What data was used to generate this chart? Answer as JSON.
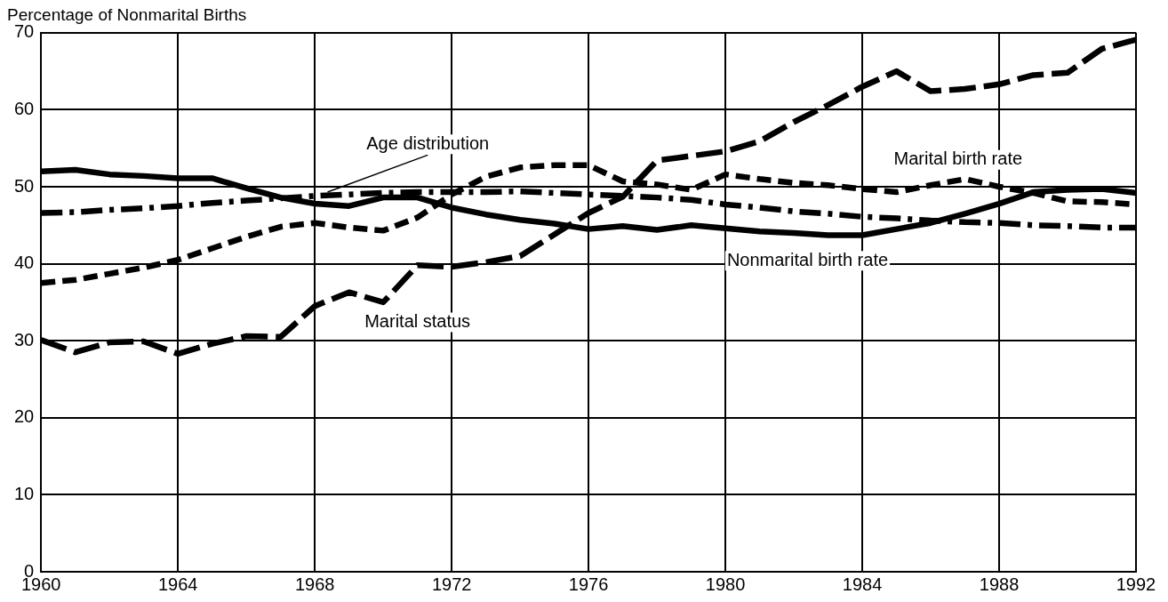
{
  "chart_data": {
    "type": "line",
    "ylabel": "Percentage of Nonmarital Births",
    "x": [
      1960,
      1961,
      1962,
      1963,
      1964,
      1965,
      1966,
      1967,
      1968,
      1969,
      1970,
      1971,
      1972,
      1973,
      1974,
      1975,
      1976,
      1977,
      1978,
      1979,
      1980,
      1981,
      1982,
      1983,
      1984,
      1985,
      1986,
      1987,
      1988,
      1989,
      1990,
      1991,
      1992
    ],
    "series": [
      {
        "name": "Nonmarital birth rate",
        "color": "#000000",
        "line_style": "solid",
        "values": [
          52,
          52.2,
          51.6,
          51.4,
          51.1,
          51.1,
          49.8,
          48.6,
          47.8,
          47.5,
          48.6,
          48.6,
          47.3,
          46.4,
          45.7,
          45.2,
          44.5,
          44.9,
          44.4,
          45.0,
          44.6,
          44.2,
          44.0,
          43.7,
          43.7,
          44.5,
          45.3,
          46.5,
          47.8,
          49.3,
          49.6,
          49.7,
          49.2
        ]
      },
      {
        "name": "Age distribution",
        "color": "#000000",
        "line_style": "dashdot",
        "values": [
          46.6,
          46.7,
          47.0,
          47.2,
          47.5,
          47.9,
          48.2,
          48.5,
          48.8,
          49.0,
          49.2,
          49.3,
          49.3,
          49.3,
          49.4,
          49.2,
          49.0,
          48.8,
          48.6,
          48.3,
          47.7,
          47.3,
          46.8,
          46.5,
          46.1,
          45.9,
          45.6,
          45.4,
          45.3,
          45.0,
          44.9,
          44.7,
          44.7
        ]
      },
      {
        "name": "Marital birth rate",
        "color": "#000000",
        "line_style": "dashed",
        "values": [
          37.5,
          37.9,
          38.7,
          39.5,
          40.5,
          42.0,
          43.5,
          44.8,
          45.3,
          44.7,
          44.3,
          46.0,
          49.0,
          51.3,
          52.5,
          52.8,
          52.8,
          50.7,
          50.3,
          49.6,
          51.6,
          51.0,
          50.5,
          50.2,
          49.7,
          49.3,
          50.2,
          51.0,
          50.0,
          49.2,
          48.1,
          48.0,
          47.7
        ]
      },
      {
        "name": "Marital status",
        "color": "#000000",
        "line_style": "longdash",
        "values": [
          30.1,
          28.5,
          29.8,
          29.9,
          28.3,
          29.6,
          30.6,
          30.5,
          34.5,
          36.3,
          35.0,
          39.8,
          39.6,
          40.2,
          41.0,
          43.8,
          46.6,
          48.7,
          53.4,
          54.0,
          54.6,
          55.9,
          58.4,
          60.6,
          63.0,
          65.0,
          62.4,
          62.7,
          63.3,
          64.5,
          64.8,
          67.9,
          69.1
        ]
      }
    ],
    "xlim": [
      1960,
      1992
    ],
    "xticks": [
      1960,
      1964,
      1968,
      1972,
      1976,
      1980,
      1984,
      1988,
      1992
    ],
    "ylim": [
      0,
      70
    ],
    "yticks": [
      0,
      10,
      20,
      30,
      40,
      50,
      60,
      70
    ],
    "grid": true,
    "legend": false
  }
}
